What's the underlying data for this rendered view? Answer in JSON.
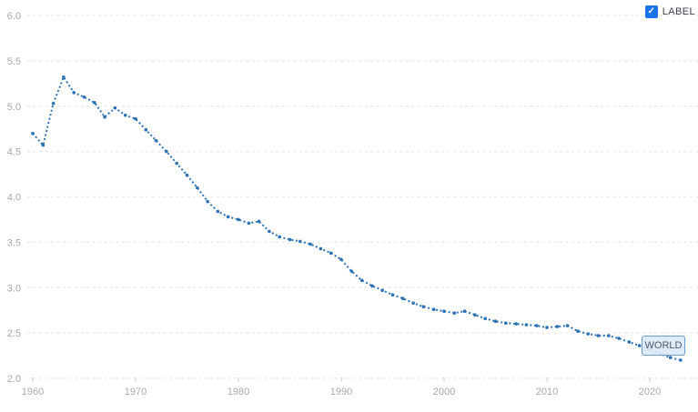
{
  "colors": {
    "line": "#2d72b5",
    "checkbox_fill": "#1a73e8",
    "checkbox_check": "#ffffff",
    "gridline": "#ebebeb",
    "axis_tick": "#cdcdcd",
    "axis_text": "#a8a8a8",
    "end_label_bg": "#dce9f7",
    "end_label_border": "#66a0d2",
    "end_label_text": "#4e5b66",
    "background": "#ffffff"
  },
  "controls": {
    "label_checkbox": {
      "label": "LABEL",
      "checked": true,
      "check_glyph": "✓"
    }
  },
  "end_label": {
    "text": "WORLD"
  },
  "chart_data": {
    "type": "line",
    "title": "",
    "xlabel": "",
    "ylabel": "",
    "line_style": "dotted",
    "grid": "horizontal-dashed",
    "legend_position": "none",
    "end_label": "WORLD",
    "ylim": [
      2.0,
      6.0
    ],
    "xlim": [
      1960,
      2023
    ],
    "yticks": [
      2.0,
      2.5,
      3.0,
      3.5,
      4.0,
      4.5,
      5.0,
      5.5,
      6.0
    ],
    "xticks": [
      1960,
      1970,
      1980,
      1990,
      2000,
      2010,
      2020
    ],
    "x": [
      1960,
      1961,
      1962,
      1963,
      1964,
      1965,
      1966,
      1967,
      1968,
      1969,
      1970,
      1971,
      1972,
      1973,
      1974,
      1975,
      1976,
      1977,
      1978,
      1979,
      1980,
      1981,
      1982,
      1983,
      1984,
      1985,
      1986,
      1987,
      1988,
      1989,
      1990,
      1991,
      1992,
      1993,
      1994,
      1995,
      1996,
      1997,
      1998,
      1999,
      2000,
      2001,
      2002,
      2003,
      2004,
      2005,
      2006,
      2007,
      2008,
      2009,
      2010,
      2011,
      2012,
      2013,
      2014,
      2015,
      2016,
      2017,
      2018,
      2019,
      2020,
      2021,
      2022,
      2023
    ],
    "series": [
      {
        "name": "WORLD",
        "values": [
          4.7,
          4.57,
          5.03,
          5.32,
          5.15,
          5.1,
          5.04,
          4.88,
          4.98,
          4.9,
          4.86,
          4.74,
          4.62,
          4.5,
          4.37,
          4.24,
          4.1,
          3.95,
          3.84,
          3.78,
          3.75,
          3.71,
          3.73,
          3.62,
          3.56,
          3.53,
          3.51,
          3.48,
          3.43,
          3.38,
          3.31,
          3.18,
          3.08,
          3.02,
          2.97,
          2.92,
          2.88,
          2.83,
          2.79,
          2.76,
          2.74,
          2.72,
          2.74,
          2.7,
          2.66,
          2.63,
          2.61,
          2.6,
          2.59,
          2.58,
          2.56,
          2.57,
          2.58,
          2.52,
          2.49,
          2.47,
          2.47,
          2.44,
          2.4,
          2.36,
          2.32,
          2.27,
          2.23,
          2.2
        ]
      }
    ]
  }
}
